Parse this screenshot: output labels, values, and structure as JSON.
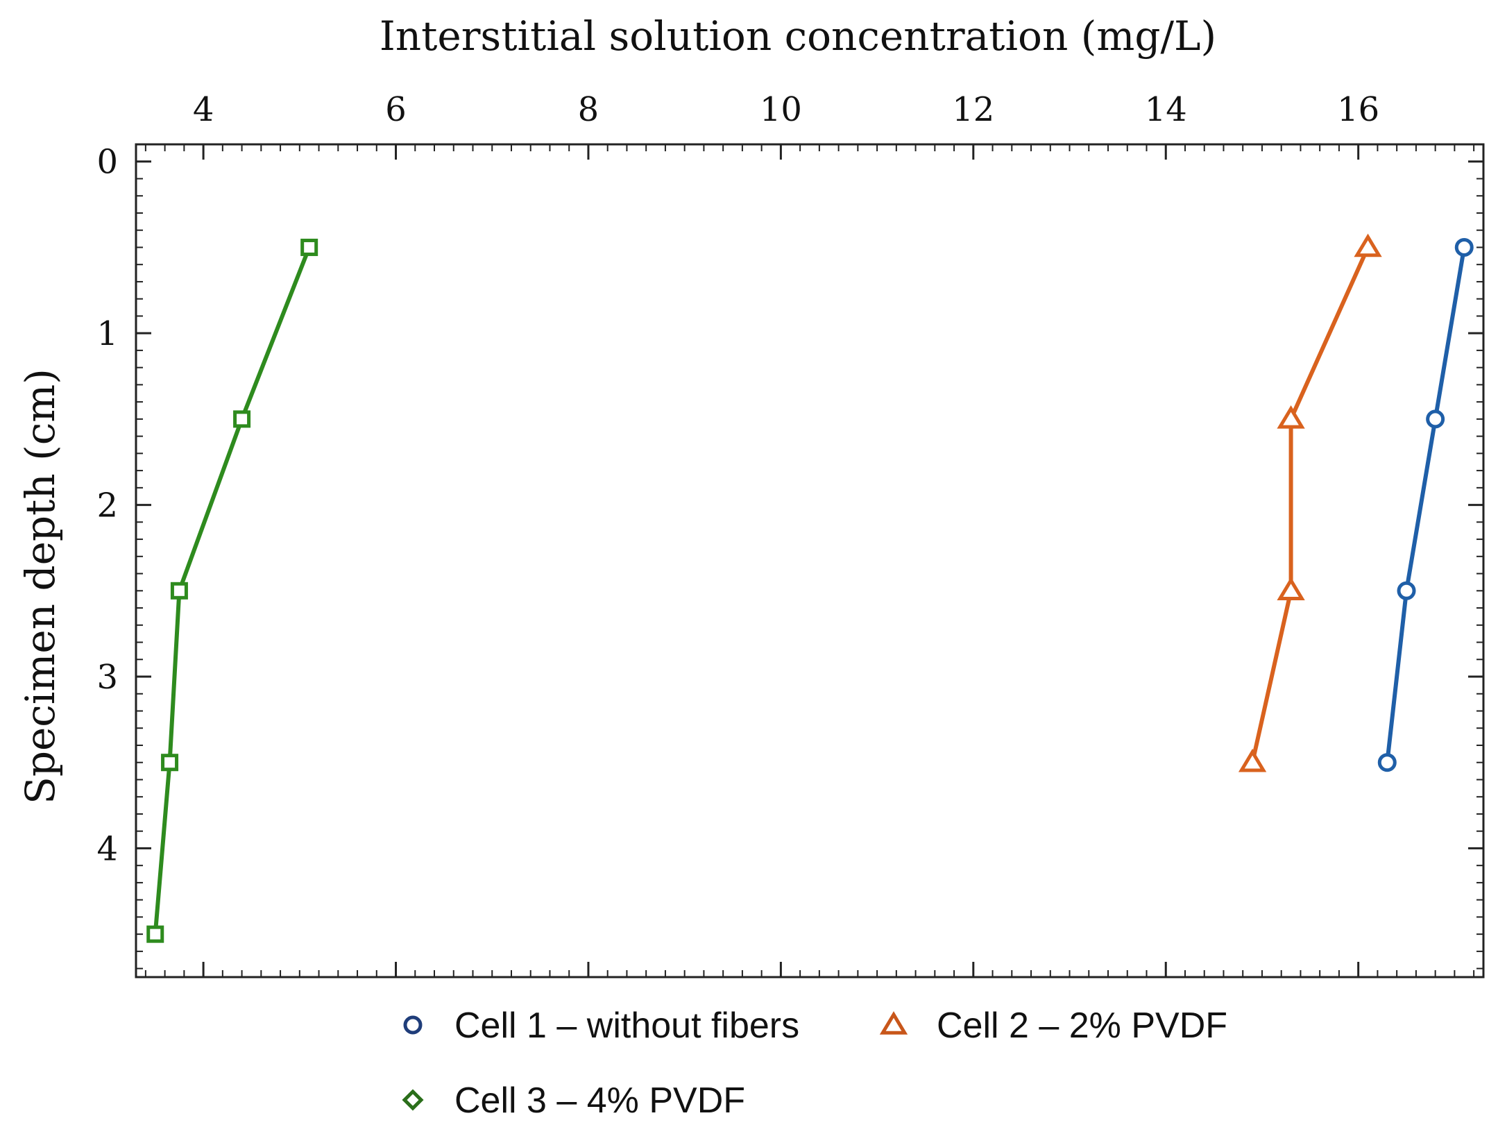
{
  "chart_data": {
    "type": "line",
    "title": "",
    "xlabel": "Interstitial solution concentration (mg/L)",
    "ylabel": "Specimen depth (cm)",
    "xlim": [
      3.3,
      17.3
    ],
    "ylim": [
      4.75,
      -0.1
    ],
    "x_ticks": [
      4,
      6,
      8,
      10,
      12,
      14,
      16
    ],
    "x_tick_labels": [
      "4",
      "6",
      "8",
      "10",
      "12",
      "14",
      "16"
    ],
    "y_ticks": [
      0,
      1,
      2,
      3,
      4
    ],
    "y_tick_labels": [
      "0",
      "1",
      "2",
      "3",
      "4"
    ],
    "x_axis_position": "top",
    "y_axis_reversed": true,
    "grid": false,
    "legend_position": "bottom",
    "series": [
      {
        "name": "Cell 1 – without fibers",
        "color": "#1f5fa8",
        "legend_color": "#1f3d7a",
        "marker": "circle",
        "x": [
          17.1,
          16.8,
          16.5,
          16.3
        ],
        "y": [
          0.5,
          1.5,
          2.5,
          3.5
        ]
      },
      {
        "name": "Cell 2 – 2% PVDF",
        "color": "#d9621e",
        "legend_color": "#c8561a",
        "marker": "triangle",
        "x": [
          16.1,
          15.3,
          15.3,
          14.9
        ],
        "y": [
          0.5,
          1.5,
          2.5,
          3.5
        ]
      },
      {
        "name": "Cell 3 – 4% PVDF",
        "color": "#2e8b1e",
        "legend_color": "#2a6e1a",
        "marker": "square",
        "legend_marker": "diamond",
        "x": [
          5.1,
          4.4,
          3.75,
          3.65,
          3.5
        ],
        "y": [
          0.5,
          1.5,
          2.5,
          3.5,
          4.5
        ]
      }
    ]
  }
}
